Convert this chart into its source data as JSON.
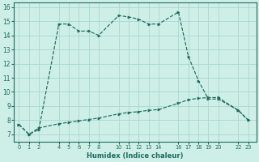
{
  "xlabel": "Humidex (Indice chaleur)",
  "bg_color": "#ceeee8",
  "grid_color": "#a8d8d0",
  "line_color": "#1e6b5e",
  "ylim": [
    6.5,
    16.3
  ],
  "xlim": [
    -0.5,
    23.8
  ],
  "yticks": [
    7,
    8,
    9,
    10,
    11,
    12,
    13,
    14,
    15,
    16
  ],
  "x_ticks": [
    0,
    1,
    2,
    4,
    5,
    6,
    7,
    8,
    10,
    11,
    12,
    13,
    14,
    16,
    17,
    18,
    19,
    20,
    22,
    23
  ],
  "x_tick_labels": [
    "0",
    "1",
    "2",
    "4",
    "5",
    "6",
    "7",
    "8",
    "10",
    "11",
    "12",
    "13",
    "14",
    "16",
    "17",
    "18",
    "19",
    "20",
    "22",
    "23"
  ],
  "line1_x": [
    0,
    1,
    2,
    4,
    5,
    6,
    7,
    8,
    10,
    11,
    12,
    13,
    14,
    16,
    17,
    18,
    19,
    20,
    22,
    23
  ],
  "line1_y": [
    7.7,
    7.0,
    7.35,
    14.8,
    14.8,
    14.3,
    14.3,
    14.0,
    15.4,
    15.3,
    15.15,
    14.8,
    14.8,
    15.65,
    12.5,
    10.8,
    9.5,
    9.5,
    8.7,
    8.0
  ],
  "line2_x": [
    0,
    1,
    2,
    4,
    5,
    6,
    7,
    8,
    10,
    11,
    12,
    13,
    14,
    16,
    17,
    18,
    19,
    20,
    22,
    23
  ],
  "line2_y": [
    7.7,
    7.0,
    7.45,
    7.75,
    7.85,
    7.95,
    8.05,
    8.15,
    8.45,
    8.55,
    8.6,
    8.7,
    8.75,
    9.2,
    9.45,
    9.55,
    9.6,
    9.6,
    8.7,
    8.0
  ]
}
